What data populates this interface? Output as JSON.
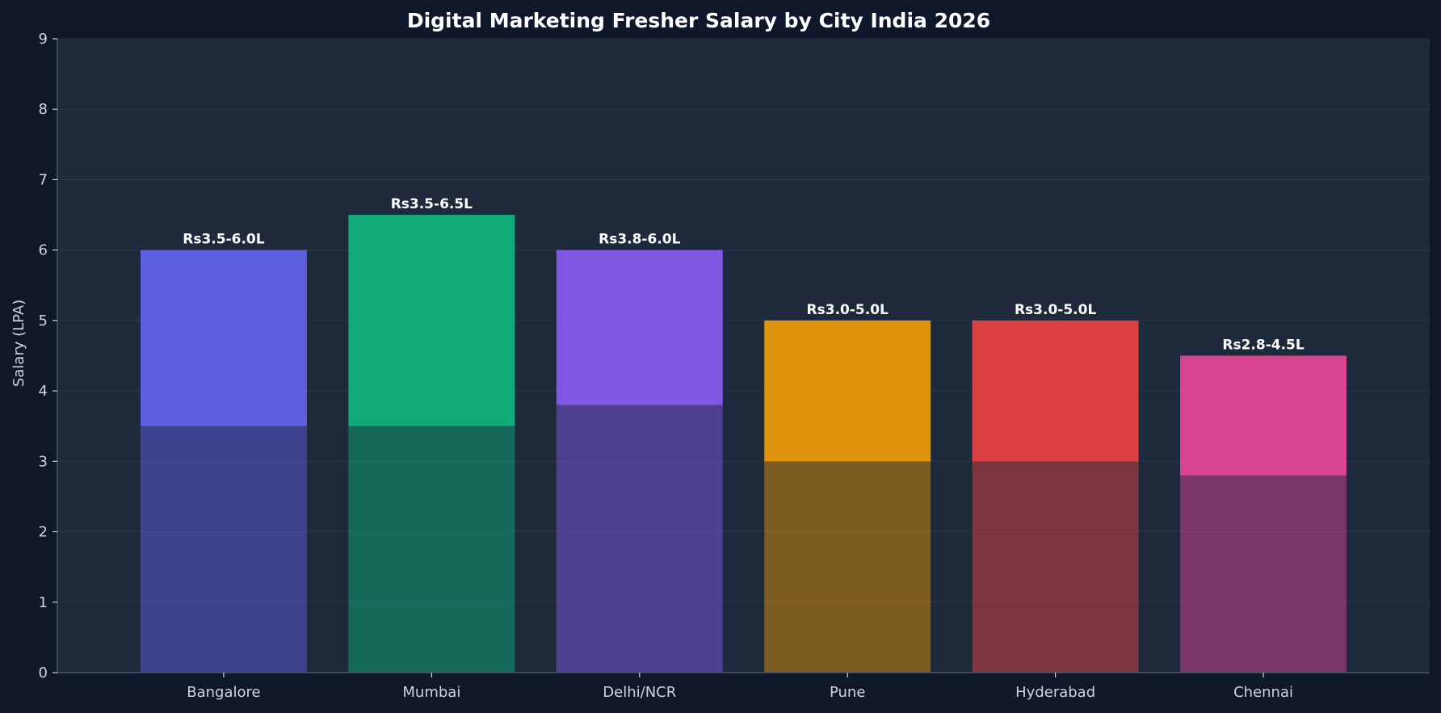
{
  "chart_data": {
    "type": "bar",
    "title": "Digital Marketing Fresher Salary by City India 2026",
    "xlabel": "",
    "ylabel": "Salary (LPA)",
    "ylim": [
      0,
      9
    ],
    "yticks": [
      "0",
      "1",
      "2",
      "3",
      "4",
      "5",
      "6",
      "7",
      "8",
      "9"
    ],
    "grid": true,
    "categories": [
      "Bangalore",
      "Mumbai",
      "Delhi/NCR",
      "Pune",
      "Hyderabad",
      "Chennai"
    ],
    "min_values": [
      3.5,
      3.5,
      3.8,
      3.0,
      3.0,
      2.8
    ],
    "max_values": [
      6.0,
      6.5,
      6.0,
      5.0,
      5.0,
      4.5
    ],
    "data_labels": [
      "Rs3.5-6.0L",
      "Rs3.5-6.5L",
      "Rs3.8-6.0L",
      "Rs3.0-5.0L",
      "Rs3.0-5.0L",
      "Rs2.8-4.5L"
    ],
    "colors": [
      "#6366f1",
      "#10b981",
      "#8b5cf6",
      "#f59e0b",
      "#ef4444",
      "#ec4899"
    ]
  },
  "theme": {
    "page_background": "#0f172a",
    "plot_background": "#1e293b",
    "grid_color": "#334155",
    "axis_color": "#475569",
    "text_color": "#cbd5e1"
  }
}
